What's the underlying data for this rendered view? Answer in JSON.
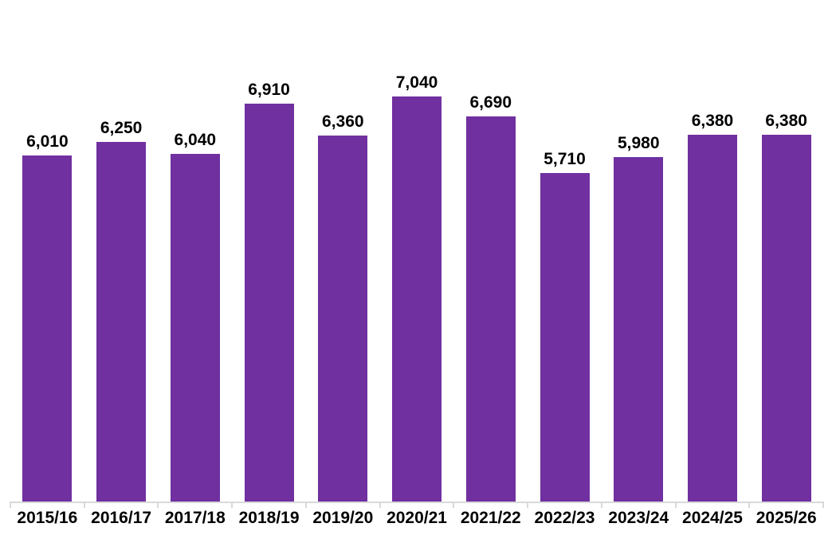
{
  "chart_data": {
    "type": "bar",
    "categories": [
      "2015/16",
      "2016/17",
      "2017/18",
      "2018/19",
      "2019/20",
      "2020/21",
      "2021/22",
      "2022/23",
      "2023/24",
      "2024/25",
      "2025/26"
    ],
    "values": [
      6010,
      6250,
      6040,
      6910,
      6360,
      7040,
      6690,
      5710,
      5980,
      6380,
      6380
    ],
    "value_labels": [
      "6,010",
      "6,250",
      "6,040",
      "6,910",
      "6,360",
      "7,040",
      "6,690",
      "5,710",
      "5,980",
      "6,380",
      "6,380"
    ],
    "title": "",
    "xlabel": "",
    "ylabel": "",
    "ylim": [
      0,
      7040
    ],
    "grid": false,
    "legend": null,
    "data_labels_shown": true,
    "bar_color": "#7030A0",
    "axis_line_color": "#D9D9D9",
    "label_color": "#000000",
    "background_color": "#FFFFFF"
  }
}
